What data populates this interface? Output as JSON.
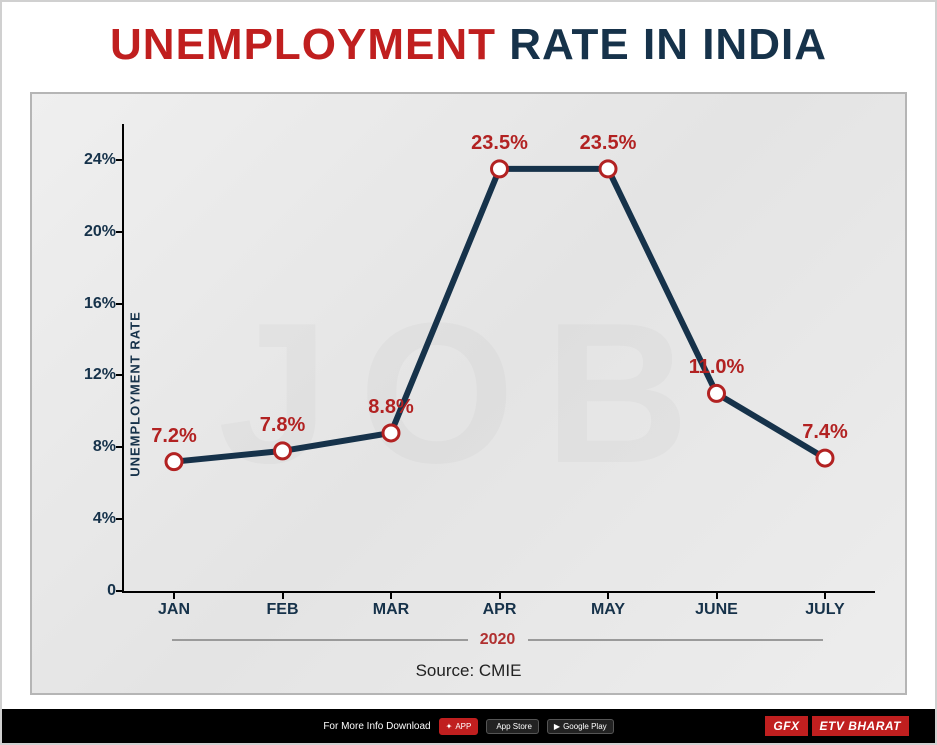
{
  "title": {
    "part1": "UNEMPLOYMENT",
    "part2": " RATE IN INDIA",
    "fontsize": 44,
    "color1": "#c01f1f",
    "color2": "#16324a"
  },
  "chart": {
    "type": "line",
    "ylabel": "UNEMPLOYMENT RATE",
    "ylim": [
      0,
      26
    ],
    "yticks": [
      0,
      4,
      8,
      12,
      16,
      20,
      24
    ],
    "ytick_suffix": "%",
    "categories": [
      "JAN",
      "FEB",
      "MAR",
      "APR",
      "MAY",
      "JUNE",
      "JULY"
    ],
    "values": [
      7.2,
      7.8,
      8.8,
      23.5,
      23.5,
      11.0,
      7.4
    ],
    "value_labels": [
      "7.2%",
      "7.8%",
      "8.8%",
      "23.5%",
      "23.5%",
      "11.0%",
      "7.4%"
    ],
    "line_color": "#16324a",
    "line_width": 6,
    "marker_outer_color": "#b22222",
    "marker_inner_color": "#ffffff",
    "marker_radius": 8,
    "marker_stroke": 3,
    "label_color": "#b22222",
    "label_fontsize": 20,
    "axis_color": "#000000",
    "tick_color": "#16324a",
    "background_color": "#ececec",
    "year": "2020",
    "year_color": "#b03030",
    "source_label": "Source: CMIE"
  },
  "footer": {
    "download_text": "For More Info Download",
    "app_text": "APP",
    "appstore_text": "App Store",
    "playstore_text": "Google Play",
    "gfx": "GFX",
    "brand": "ETV BHARAT"
  },
  "watermark": "JOB"
}
